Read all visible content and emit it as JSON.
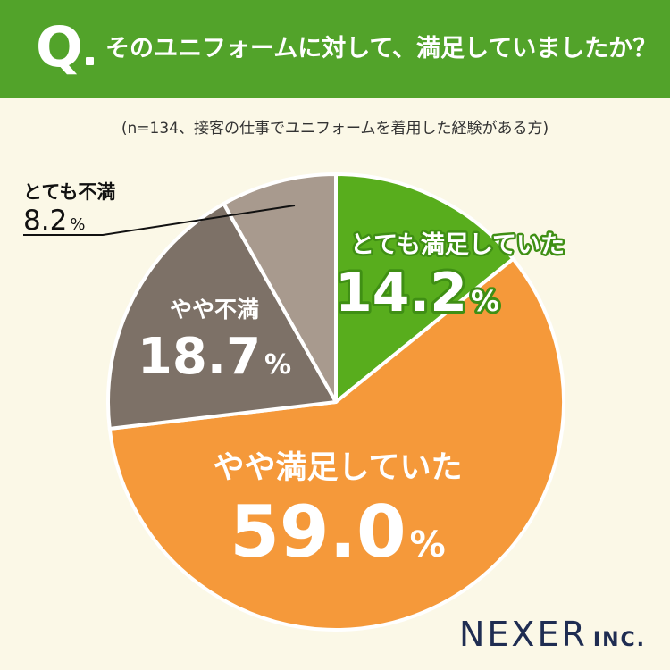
{
  "header": {
    "q_letter": "Q",
    "question": "そのユニフォームに対して、満足していましたか？"
  },
  "subtitle": "(n=134、接客の仕事でユニフォームを着用した経験がある方)",
  "chart_data": {
    "type": "pie",
    "title": "そのユニフォームに対して、満足していましたか？",
    "note": "(n=134、接客の仕事でユニフォームを着用した経験がある方)",
    "start": "12 o'clock, clockwise",
    "slices": [
      {
        "label": "とても満足していた",
        "value": 14.2,
        "value_text": "14.2",
        "color": "#58ad1d"
      },
      {
        "label": "やや満足していた",
        "value": 59.0,
        "value_text": "59.0",
        "color": "#f5993a"
      },
      {
        "label": "やや不満",
        "value": 18.7,
        "value_text": "18.7",
        "color": "#7d7167"
      },
      {
        "label": "とても不満",
        "value": 8.2,
        "value_text": "8.2",
        "color": "#a89a8e"
      }
    ],
    "unit": "%"
  },
  "brand": {
    "main": "NEXER",
    "sub": "INC."
  }
}
